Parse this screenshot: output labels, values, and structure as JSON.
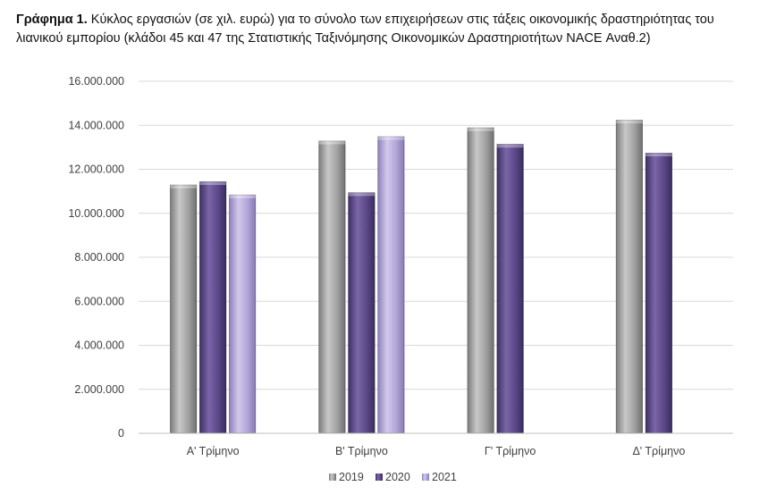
{
  "caption": {
    "label": "Γράφημα 1.",
    "line1_text": "Κύκλος εργασιών (σε χιλ. ευρώ) για το σύνολο των επιχειρήσεων στις τάξεις οικονομικής δραστηριότητας του",
    "line2_text": "λιανικού εμπορίου (κλάδοι 45 και 47 της Στατιστικής Ταξινόμησης Οικονομικών Δραστηριοτήτων NACE Αναθ.2)"
  },
  "chart_data": {
    "type": "bar",
    "categories": [
      "Α' Τρίμηνο",
      "Β' Τρίμηνο",
      "Γ' Τρίμηνο",
      "Δ' Τρίμηνο"
    ],
    "series": [
      {
        "name": "2019",
        "color": "#a6a6a6",
        "values": [
          11300000,
          13300000,
          13900000,
          14250000
        ]
      },
      {
        "name": "2020",
        "color": "#5f4b8b",
        "values": [
          11450000,
          10950000,
          13150000,
          12750000
        ]
      },
      {
        "name": "2021",
        "color": "#b4a7d6",
        "values": [
          10850000,
          13500000,
          null,
          null
        ]
      }
    ],
    "y_ticks": [
      "0",
      "2.000.000",
      "4.000.000",
      "6.000.000",
      "8.000.000",
      "10.000.000",
      "12.000.000",
      "14.000.000",
      "16.000.000"
    ],
    "ylim": [
      0,
      16000000
    ],
    "grid": true,
    "legend_position": "bottom"
  }
}
